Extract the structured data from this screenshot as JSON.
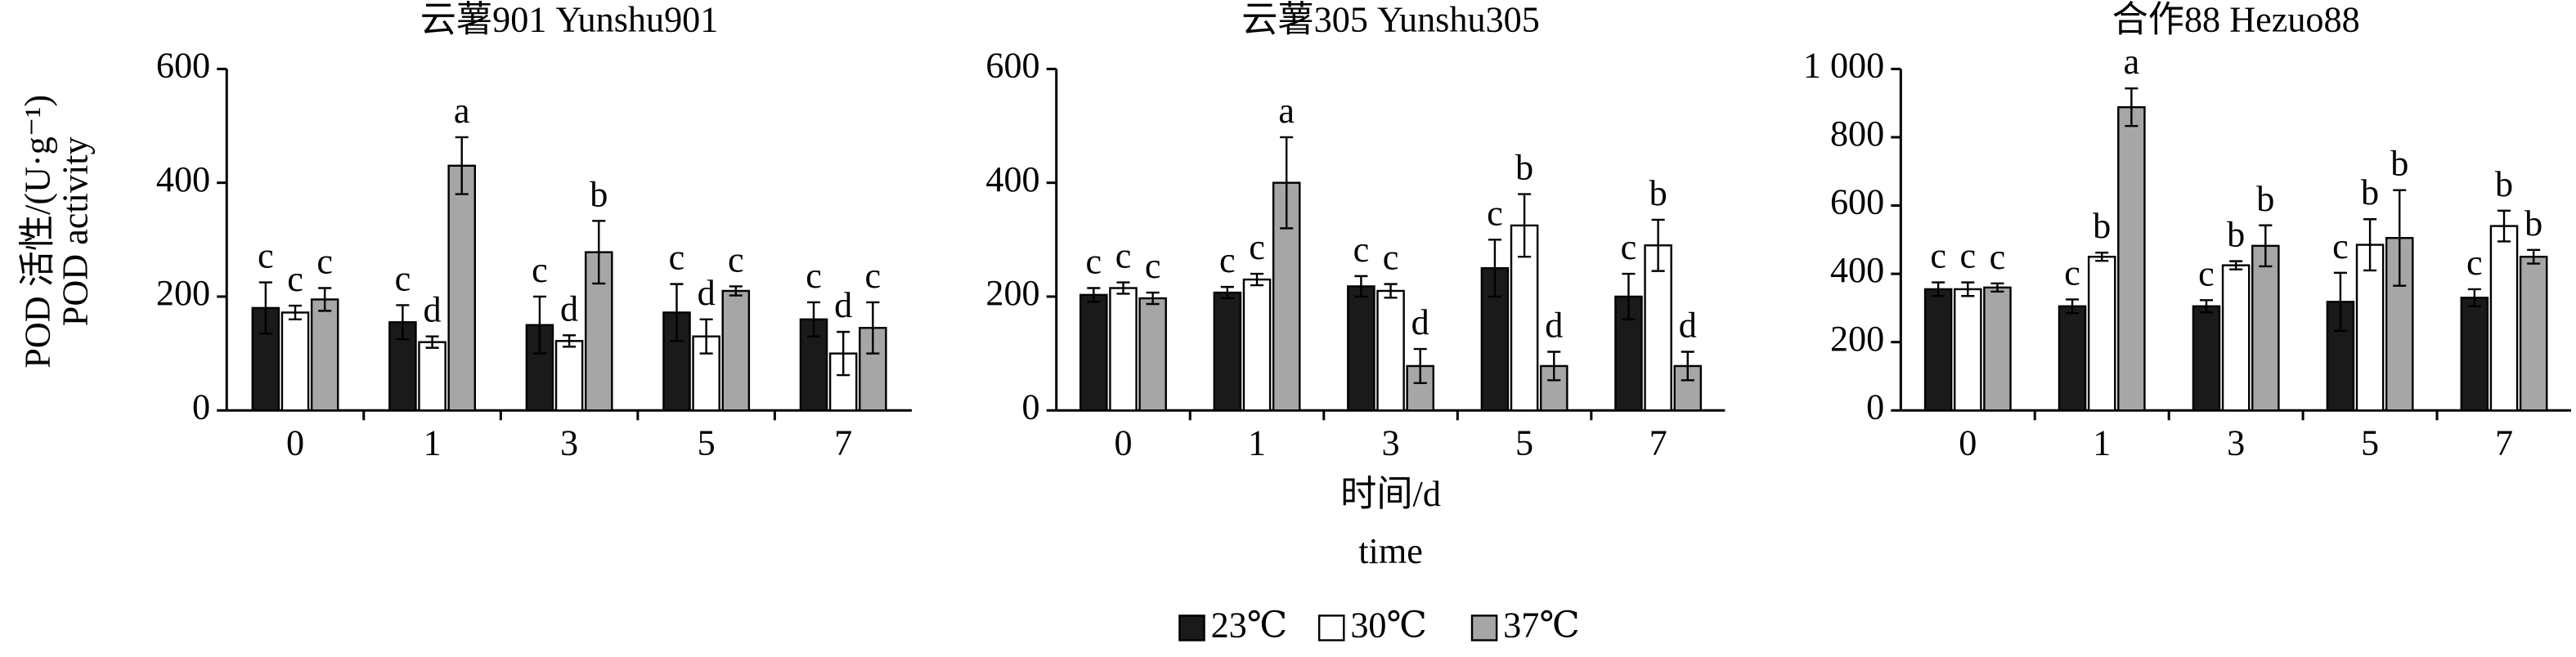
{
  "chart_data": [
    {
      "type": "bar",
      "title": "云薯901 Yunshu901",
      "ylabel": [
        "POD 活性/(U·g⁻¹)",
        "POD activity"
      ],
      "categories": [
        "0",
        "1",
        "3",
        "5",
        "7"
      ],
      "ylim": [
        0,
        600
      ],
      "yticks": [
        0,
        200,
        400,
        600
      ],
      "series": [
        {
          "name": "23℃",
          "color": "#1a1a1a",
          "values": [
            180,
            155,
            150,
            172,
            160
          ],
          "errors": [
            45,
            30,
            50,
            50,
            30
          ],
          "labels": [
            "c",
            "c",
            "c",
            "c",
            "c"
          ]
        },
        {
          "name": "30℃",
          "color": "#ffffff",
          "values": [
            172,
            120,
            122,
            130,
            100
          ],
          "errors": [
            12,
            10,
            10,
            30,
            38
          ],
          "labels": [
            "c",
            "d",
            "d",
            "d",
            "d"
          ]
        },
        {
          "name": "37℃",
          "color": "#a6a6a6",
          "values": [
            195,
            430,
            278,
            210,
            145
          ],
          "errors": [
            20,
            50,
            55,
            8,
            45
          ],
          "labels": [
            "c",
            "a",
            "b",
            "c",
            "c"
          ]
        }
      ]
    },
    {
      "type": "bar",
      "title": "云薯305 Yunshu305",
      "xlabel": [
        "时间/d",
        "time"
      ],
      "categories": [
        "0",
        "1",
        "3",
        "5",
        "7"
      ],
      "ylim": [
        0,
        600
      ],
      "yticks": [
        0,
        200,
        400,
        600
      ],
      "series": [
        {
          "color": "#1a1a1a",
          "values": [
            203,
            207,
            218,
            250,
            200
          ],
          "errors": [
            12,
            10,
            18,
            50,
            40
          ],
          "labels": [
            "c",
            "c",
            "c",
            "c",
            "c"
          ]
        },
        {
          "color": "#ffffff",
          "values": [
            215,
            230,
            210,
            325,
            290
          ],
          "errors": [
            10,
            10,
            12,
            55,
            45
          ],
          "labels": [
            "c",
            "c",
            "c",
            "b",
            "b"
          ]
        },
        {
          "color": "#a6a6a6",
          "values": [
            197,
            400,
            78,
            78,
            78
          ],
          "errors": [
            10,
            80,
            30,
            25,
            25
          ],
          "labels": [
            "c",
            "a",
            "d",
            "d",
            "d"
          ]
        }
      ]
    },
    {
      "type": "bar",
      "title": "合作88 Hezuo88",
      "categories": [
        "0",
        "1",
        "3",
        "5",
        "7"
      ],
      "ylim": [
        0,
        1000
      ],
      "yticks": [
        0,
        200,
        400,
        600,
        800,
        {
          "value": 1000,
          "label": "1 000"
        }
      ],
      "series": [
        {
          "color": "#1a1a1a",
          "values": [
            355,
            305,
            305,
            318,
            330
          ],
          "errors": [
            20,
            20,
            18,
            85,
            25
          ],
          "labels": [
            "c",
            "c",
            "c",
            "c",
            "c"
          ]
        },
        {
          "color": "#ffffff",
          "values": [
            355,
            450,
            425,
            485,
            540
          ],
          "errors": [
            20,
            12,
            12,
            75,
            45
          ],
          "labels": [
            "c",
            "b",
            "b",
            "b",
            "b"
          ]
        },
        {
          "color": "#a6a6a6",
          "values": [
            360,
            888,
            482,
            505,
            450
          ],
          "errors": [
            12,
            55,
            60,
            140,
            20
          ],
          "labels": [
            "c",
            "a",
            "b",
            "b",
            "b"
          ]
        }
      ]
    }
  ]
}
